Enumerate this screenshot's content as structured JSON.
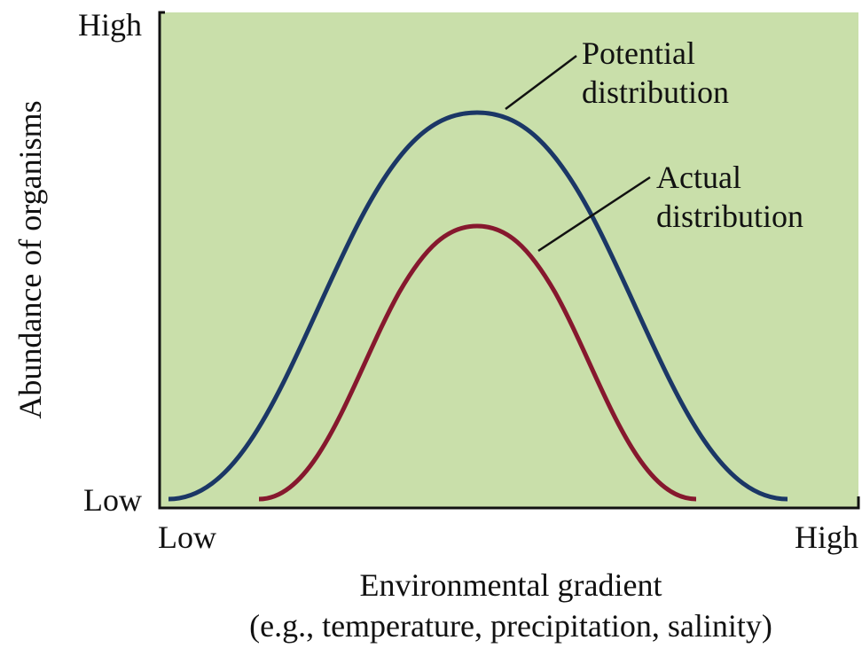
{
  "y_axis": {
    "label": "Abundance of organisms",
    "high": "High",
    "low": "Low"
  },
  "x_axis": {
    "label": "Environmental gradient",
    "sublabel": "(e.g., temperature, precipitation, salinity)",
    "low": "Low",
    "high": "High"
  },
  "curves": [
    {
      "label_line1": "Potential",
      "label_line2": "distribution"
    },
    {
      "label_line1": "Actual",
      "label_line2": "distribution"
    }
  ]
}
